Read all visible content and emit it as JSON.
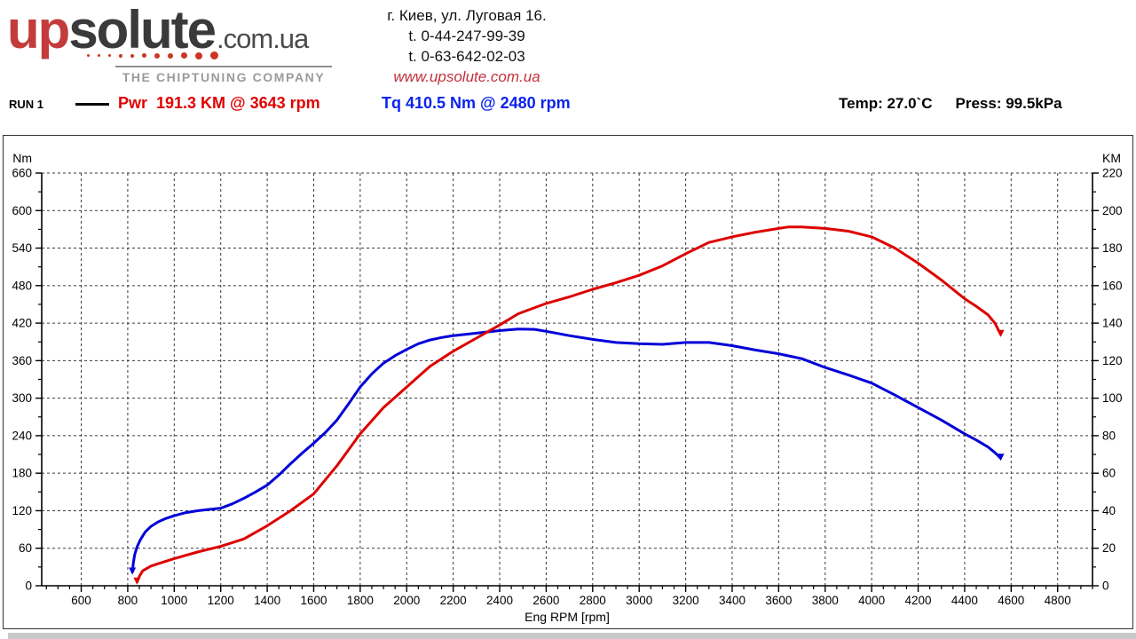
{
  "header": {
    "logo": {
      "part1": "up",
      "part2": "solute",
      "suffix": ".com.ua",
      "tagline": "THE CHIPTUNING COMPANY",
      "dot_sizes": [
        3,
        3,
        3,
        4,
        4,
        5,
        6,
        6,
        7,
        8,
        9
      ]
    },
    "address_lines": [
      "г. Киев, ул. Луговая 16.",
      "t. 0-44-247-99-39",
      "t. 0-63-642-02-03"
    ],
    "website": "www.upsolute.com.ua"
  },
  "legend": {
    "run_label": "RUN 1",
    "power_text": "Pwr  191.3 KM @ 3643 rpm",
    "torque_text": "Tq 410.5 Nm @ 2480 rpm",
    "temp_text": "Temp: 27.0`C",
    "press_text": "Press: 99.5kPa"
  },
  "colors": {
    "power": "#dd0000",
    "torque": "#0000d8",
    "grid": "#3a3a3a",
    "axis": "#000000"
  },
  "chart_data": {
    "type": "line",
    "x_axis": {
      "label": "Eng RPM [rpm]",
      "min": 430,
      "max": 4950,
      "major_tick_start": 600,
      "major_tick_end": 4800,
      "major_step": 200,
      "minor_step": 50
    },
    "y_left": {
      "label": "Nm",
      "min": 0,
      "max": 660,
      "major_step": 60,
      "minor_step": 30
    },
    "y_right": {
      "label": "KM",
      "min": 0,
      "max": 220,
      "major_step": 20,
      "minor_step": 10
    },
    "grid": true,
    "series": [
      {
        "name": "Torque",
        "axis": "left",
        "unit": "Nm",
        "color": "#0000d8",
        "peak_label": "410.5 Nm @ 2480 rpm",
        "points": [
          [
            820,
            22
          ],
          [
            824,
            36
          ],
          [
            830,
            50
          ],
          [
            840,
            62
          ],
          [
            855,
            74
          ],
          [
            875,
            86
          ],
          [
            900,
            95
          ],
          [
            930,
            102
          ],
          [
            960,
            107
          ],
          [
            1000,
            112
          ],
          [
            1050,
            117
          ],
          [
            1100,
            120
          ],
          [
            1150,
            122
          ],
          [
            1200,
            124
          ],
          [
            1250,
            131
          ],
          [
            1300,
            140
          ],
          [
            1350,
            150
          ],
          [
            1400,
            161
          ],
          [
            1450,
            177
          ],
          [
            1500,
            195
          ],
          [
            1550,
            212
          ],
          [
            1600,
            228
          ],
          [
            1650,
            245
          ],
          [
            1700,
            265
          ],
          [
            1750,
            291
          ],
          [
            1800,
            318
          ],
          [
            1850,
            339
          ],
          [
            1900,
            356
          ],
          [
            1950,
            368
          ],
          [
            2000,
            378
          ],
          [
            2050,
            387
          ],
          [
            2100,
            393
          ],
          [
            2150,
            397
          ],
          [
            2200,
            400
          ],
          [
            2300,
            404
          ],
          [
            2400,
            408
          ],
          [
            2480,
            410.5
          ],
          [
            2550,
            410
          ],
          [
            2600,
            407
          ],
          [
            2700,
            400
          ],
          [
            2800,
            394
          ],
          [
            2900,
            389
          ],
          [
            3000,
            387
          ],
          [
            3100,
            386
          ],
          [
            3200,
            389
          ],
          [
            3300,
            389
          ],
          [
            3400,
            384
          ],
          [
            3500,
            377
          ],
          [
            3600,
            371
          ],
          [
            3700,
            363
          ],
          [
            3800,
            349
          ],
          [
            3900,
            337
          ],
          [
            4000,
            324
          ],
          [
            4100,
            305
          ],
          [
            4200,
            285
          ],
          [
            4300,
            265
          ],
          [
            4400,
            243
          ],
          [
            4450,
            233
          ],
          [
            4500,
            222
          ],
          [
            4530,
            213
          ],
          [
            4555,
            204
          ]
        ]
      },
      {
        "name": "Power",
        "axis": "right",
        "unit": "KM",
        "color": "#dd0000",
        "peak_label": "191.3 KM @ 3643 rpm",
        "points": [
          [
            840,
            2
          ],
          [
            850,
            5
          ],
          [
            865,
            8
          ],
          [
            900,
            10.5
          ],
          [
            950,
            12.5
          ],
          [
            1000,
            14.5
          ],
          [
            1100,
            18
          ],
          [
            1200,
            21
          ],
          [
            1300,
            25
          ],
          [
            1400,
            32
          ],
          [
            1500,
            40
          ],
          [
            1600,
            49
          ],
          [
            1700,
            64
          ],
          [
            1800,
            81
          ],
          [
            1900,
            95
          ],
          [
            2000,
            106
          ],
          [
            2100,
            117
          ],
          [
            2200,
            125
          ],
          [
            2300,
            132
          ],
          [
            2400,
            139
          ],
          [
            2480,
            145
          ],
          [
            2600,
            150.5
          ],
          [
            2700,
            154
          ],
          [
            2800,
            158
          ],
          [
            2900,
            161.5
          ],
          [
            3000,
            165.5
          ],
          [
            3100,
            170.5
          ],
          [
            3200,
            177
          ],
          [
            3300,
            183
          ],
          [
            3400,
            186
          ],
          [
            3500,
            188.5
          ],
          [
            3600,
            190.5
          ],
          [
            3643,
            191.3
          ],
          [
            3700,
            191.3
          ],
          [
            3800,
            190.5
          ],
          [
            3900,
            189
          ],
          [
            4000,
            186
          ],
          [
            4100,
            180
          ],
          [
            4200,
            172
          ],
          [
            4300,
            163
          ],
          [
            4400,
            153
          ],
          [
            4450,
            149
          ],
          [
            4500,
            144.5
          ],
          [
            4530,
            140
          ],
          [
            4555,
            134
          ]
        ]
      }
    ]
  }
}
